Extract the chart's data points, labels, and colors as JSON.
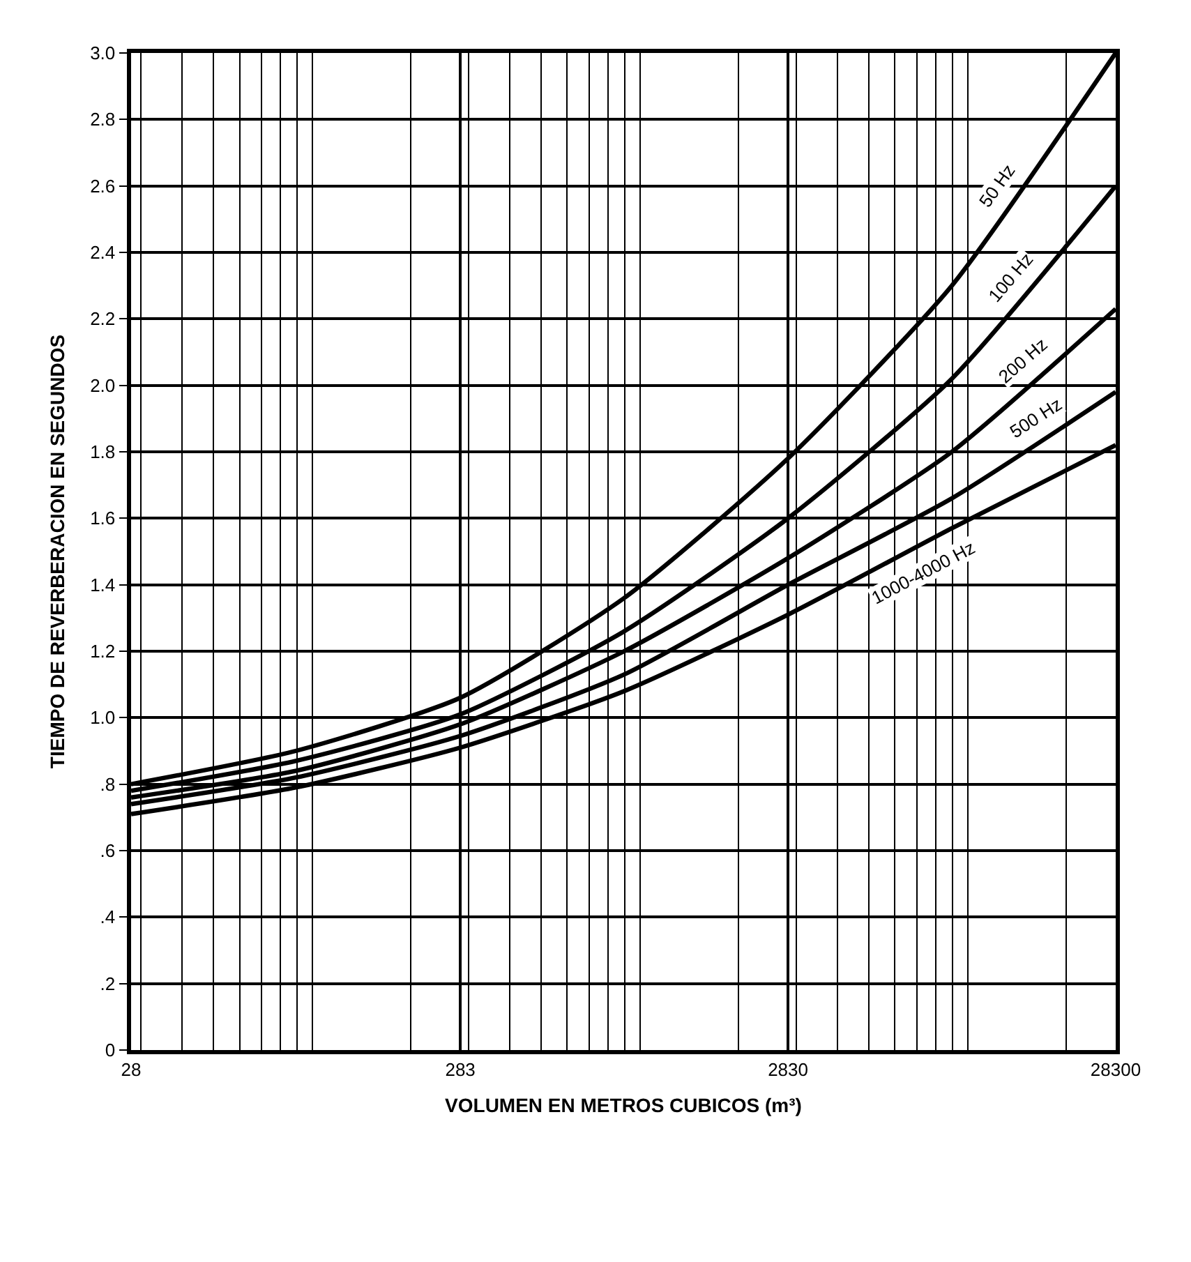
{
  "chart_data": {
    "type": "line",
    "xlabel": "VOLUMEN EN METROS CUBICOS (m³)",
    "ylabel": "TIEMPO DE REVERBERACION EN SEGUNDOS",
    "x": [
      28,
      89,
      283,
      895,
      2830,
      8950,
      28300
    ],
    "series": [
      {
        "name": "50 Hz",
        "color": "#000000",
        "values": [
          0.8,
          0.9,
          1.06,
          1.36,
          1.78,
          2.3,
          3.0
        ]
      },
      {
        "name": "100 Hz",
        "color": "#000000",
        "values": [
          0.78,
          0.87,
          1.01,
          1.26,
          1.6,
          2.02,
          2.6
        ]
      },
      {
        "name": "200 Hz",
        "color": "#000000",
        "values": [
          0.76,
          0.84,
          0.98,
          1.2,
          1.48,
          1.8,
          2.23
        ]
      },
      {
        "name": "500 Hz",
        "color": "#000000",
        "values": [
          0.74,
          0.82,
          0.945,
          1.13,
          1.4,
          1.66,
          1.98
        ]
      },
      {
        "name": "1000-4000 Hz",
        "color": "#000000",
        "values": [
          0.71,
          0.79,
          0.91,
          1.08,
          1.31,
          1.57,
          1.82
        ]
      }
    ],
    "log": "x",
    "xlim": [
      28,
      28300
    ],
    "xticks": [
      28,
      283,
      2830,
      28300
    ],
    "ylim": [
      0,
      3.0
    ],
    "yticks": [
      0,
      {
        "value": 0.2,
        "label": ".2"
      },
      {
        "value": 0.4,
        "label": ".4"
      },
      {
        "value": 0.6,
        "label": ".6"
      },
      {
        "value": 0.8,
        "label": ".8"
      },
      {
        "value": 1.0,
        "label": "1.0"
      },
      {
        "value": 1.2,
        "label": "1.2"
      },
      {
        "value": 1.4,
        "label": "1.4"
      },
      {
        "value": 1.6,
        "label": "1.6"
      },
      {
        "value": 1.8,
        "label": "1.8"
      },
      {
        "value": 2.0,
        "label": "2.0"
      },
      {
        "value": 2.2,
        "label": "2.2"
      },
      {
        "value": 2.4,
        "label": "2.4"
      },
      {
        "value": 2.6,
        "label": "2.6"
      },
      {
        "value": 2.8,
        "label": "2.8"
      },
      {
        "value": 3.0,
        "label": "3.0"
      }
    ],
    "grid": true,
    "legend": false,
    "marker": "none",
    "line_style": "solid"
  }
}
